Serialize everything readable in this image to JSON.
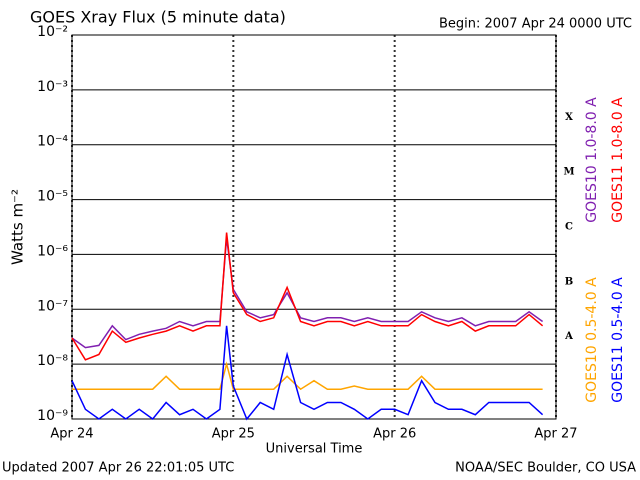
{
  "chart_data": {
    "type": "line",
    "title": "GOES Xray Flux (5 minute data)",
    "subtitle": "Begin:  2007 Apr 24 0000 UTC",
    "footer_left": "Updated 2007 Apr 26 22:01:05 UTC",
    "footer_right": "NOAA/SEC Boulder, CO USA",
    "xlabel": "Universal Time",
    "ylabel": "Watts m⁻²",
    "log_scale": true,
    "grid": true,
    "flare_classes": [
      "A",
      "B",
      "C",
      "M",
      "X"
    ],
    "x": [
      0,
      2,
      4,
      6,
      8,
      10,
      12,
      14,
      16,
      18,
      20,
      22,
      23,
      24,
      26,
      28,
      30,
      32,
      34,
      36,
      38,
      40,
      42,
      44,
      46,
      48,
      50,
      52,
      54,
      56,
      58,
      60,
      62,
      64,
      66,
      68,
      70
    ],
    "xlim": [
      0,
      72
    ],
    "xticks": [
      {
        "value": 0,
        "label": "Apr 24"
      },
      {
        "value": 24,
        "label": "Apr 25"
      },
      {
        "value": 48,
        "label": "Apr 26"
      },
      {
        "value": 72,
        "label": "Apr 27"
      }
    ],
    "ylim": [
      1e-09,
      0.01
    ],
    "yticks": [
      {
        "value": 1e-09,
        "label": "10⁻⁹"
      },
      {
        "value": 1e-08,
        "label": "10⁻⁸"
      },
      {
        "value": 1e-07,
        "label": "10⁻⁷"
      },
      {
        "value": 1e-06,
        "label": "10⁻⁶"
      },
      {
        "value": 1e-05,
        "label": "10⁻⁵"
      },
      {
        "value": 0.0001,
        "label": "10⁻⁴"
      },
      {
        "value": 0.001,
        "label": "10⁻³"
      },
      {
        "value": 0.01,
        "label": "10⁻²"
      }
    ],
    "series": [
      {
        "name": "GOES10 1.0-8.0 A",
        "color": "#8020b0",
        "values": [
          3e-08,
          2e-08,
          2.2e-08,
          5e-08,
          2.8e-08,
          3.5e-08,
          4e-08,
          4.5e-08,
          6e-08,
          5e-08,
          6e-08,
          6e-08,
          2e-06,
          2.3e-07,
          9e-08,
          7e-08,
          8e-08,
          2e-07,
          7e-08,
          6e-08,
          7e-08,
          7e-08,
          6e-08,
          7e-08,
          6e-08,
          6e-08,
          6e-08,
          9e-08,
          7e-08,
          6e-08,
          7e-08,
          5e-08,
          6e-08,
          6e-08,
          6e-08,
          9e-08,
          6e-08
        ]
      },
      {
        "name": "GOES11 1.0-8.0 A",
        "color": "#ff0000",
        "values": [
          3e-08,
          1.2e-08,
          1.5e-08,
          4e-08,
          2.5e-08,
          3e-08,
          3.5e-08,
          4e-08,
          5e-08,
          4e-08,
          5e-08,
          5e-08,
          2.5e-06,
          2e-07,
          8e-08,
          6e-08,
          7e-08,
          2.5e-07,
          6e-08,
          5e-08,
          6e-08,
          6e-08,
          5e-08,
          6e-08,
          5e-08,
          5e-08,
          5e-08,
          8e-08,
          6e-08,
          5e-08,
          6e-08,
          4e-08,
          5e-08,
          5e-08,
          5e-08,
          8e-08,
          5e-08
        ]
      },
      {
        "name": "GOES10 0.5-4.0 A",
        "color": "#ffa500",
        "values": [
          3.5e-09,
          3.5e-09,
          3.5e-09,
          3.5e-09,
          3.5e-09,
          3.5e-09,
          3.5e-09,
          6e-09,
          3.5e-09,
          3.5e-09,
          3.5e-09,
          3.5e-09,
          1e-08,
          3.5e-09,
          3.5e-09,
          3.5e-09,
          3.5e-09,
          6e-09,
          3.5e-09,
          5e-09,
          3.5e-09,
          3.5e-09,
          4e-09,
          3.5e-09,
          3.5e-09,
          3.5e-09,
          3.5e-09,
          6e-09,
          3.5e-09,
          3.5e-09,
          3.5e-09,
          3.5e-09,
          3.5e-09,
          3.5e-09,
          3.5e-09,
          3.5e-09,
          3.5e-09
        ]
      },
      {
        "name": "GOES11 0.5-4.0 A",
        "color": "#0000ff",
        "values": [
          5e-09,
          1.5e-09,
          1e-09,
          1.5e-09,
          1e-09,
          1.5e-09,
          1e-09,
          2e-09,
          1.2e-09,
          1.5e-09,
          1e-09,
          1.5e-09,
          5e-08,
          4e-09,
          1e-09,
          2e-09,
          1.5e-09,
          1.5e-08,
          2e-09,
          1.5e-09,
          2e-09,
          2e-09,
          1.5e-09,
          1e-09,
          1.5e-09,
          1.5e-09,
          1.2e-09,
          5e-09,
          2e-09,
          1.5e-09,
          1.5e-09,
          1.2e-09,
          2e-09,
          2e-09,
          2e-09,
          2e-09,
          1.2e-09
        ]
      }
    ]
  }
}
